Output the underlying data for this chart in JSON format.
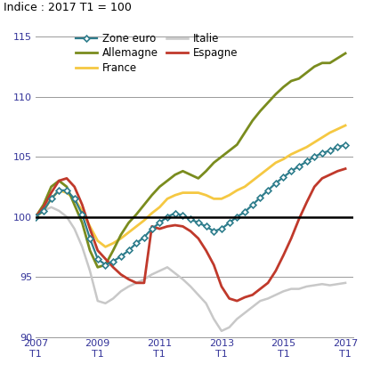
{
  "title": "Indice : 2017 T1 = 100",
  "xlim": [
    2007.0,
    2017.25
  ],
  "ylim": [
    90,
    116
  ],
  "yticks": [
    90,
    95,
    100,
    105,
    110,
    115
  ],
  "xticks": [
    2007,
    2009,
    2011,
    2013,
    2015,
    2017
  ],
  "xlabel_labels": [
    "2007\nT1",
    "2009\nT1",
    "2011\nT1",
    "2013\nT1",
    "2015\nT1",
    "2017\nT1"
  ],
  "series": {
    "Zone euro": {
      "color": "#2e7d8c",
      "linewidth": 1.6,
      "marker": "D",
      "markersize": 3.5,
      "markerfacecolor": "white",
      "markeredgecolor": "#2e7d8c",
      "markeredgewidth": 1.2,
      "data": [
        100.0,
        100.5,
        101.5,
        102.2,
        102.2,
        101.5,
        100.2,
        98.2,
        96.5,
        96.0,
        96.3,
        96.7,
        97.2,
        97.8,
        98.3,
        99.0,
        99.5,
        100.0,
        100.3,
        100.1,
        99.8,
        99.5,
        99.2,
        98.8,
        99.0,
        99.5,
        100.0,
        100.4,
        101.0,
        101.6,
        102.2,
        102.8,
        103.3,
        103.8,
        104.2,
        104.6,
        105.0,
        105.3,
        105.5,
        105.8,
        106.0
      ]
    },
    "Allemagne": {
      "color": "#7a8c1e",
      "linewidth": 2.0,
      "marker": null,
      "data": [
        100.0,
        101.0,
        102.5,
        103.0,
        102.5,
        101.0,
        99.5,
        97.2,
        95.8,
        96.0,
        97.2,
        98.5,
        99.5,
        100.2,
        101.0,
        101.8,
        102.5,
        103.0,
        103.5,
        103.8,
        103.5,
        103.2,
        103.8,
        104.5,
        105.0,
        105.5,
        106.0,
        107.0,
        108.0,
        108.8,
        109.5,
        110.2,
        110.8,
        111.3,
        111.5,
        112.0,
        112.5,
        112.8,
        112.8,
        113.2,
        113.6
      ]
    },
    "France": {
      "color": "#f5c842",
      "linewidth": 2.0,
      "marker": null,
      "data": [
        100.0,
        100.5,
        101.5,
        102.2,
        102.0,
        101.5,
        100.5,
        99.2,
        98.0,
        97.5,
        97.8,
        98.2,
        98.7,
        99.2,
        99.7,
        100.3,
        100.8,
        101.5,
        101.8,
        102.0,
        102.0,
        102.0,
        101.8,
        101.5,
        101.5,
        101.8,
        102.2,
        102.5,
        103.0,
        103.5,
        104.0,
        104.5,
        104.8,
        105.2,
        105.5,
        105.8,
        106.2,
        106.6,
        107.0,
        107.3,
        107.6
      ]
    },
    "Italie": {
      "color": "#c8c8c8",
      "linewidth": 1.8,
      "marker": null,
      "data": [
        100.0,
        100.5,
        100.8,
        100.5,
        100.0,
        99.0,
        97.5,
        95.5,
        93.0,
        92.8,
        93.2,
        93.8,
        94.2,
        94.5,
        94.8,
        95.2,
        95.5,
        95.8,
        95.3,
        94.8,
        94.2,
        93.5,
        92.8,
        91.5,
        90.5,
        90.8,
        91.5,
        92.0,
        92.5,
        93.0,
        93.2,
        93.5,
        93.8,
        94.0,
        94.0,
        94.2,
        94.3,
        94.4,
        94.3,
        94.4,
        94.5
      ]
    },
    "Espagne": {
      "color": "#c0392b",
      "linewidth": 2.0,
      "marker": null,
      "data": [
        100.0,
        100.8,
        102.0,
        103.0,
        103.2,
        102.5,
        101.0,
        99.0,
        97.2,
        96.5,
        95.8,
        95.2,
        94.8,
        94.5,
        94.5,
        99.2,
        99.0,
        99.2,
        99.3,
        99.2,
        98.8,
        98.2,
        97.2,
        96.0,
        94.2,
        93.2,
        93.0,
        93.3,
        93.5,
        94.0,
        94.5,
        95.5,
        96.8,
        98.2,
        99.8,
        101.2,
        102.5,
        103.2,
        103.5,
        103.8,
        104.0
      ]
    }
  },
  "legend_rows": [
    [
      "Zone euro",
      "Allemagne"
    ],
    [
      "France",
      "Italie"
    ],
    [
      "Espagne"
    ]
  ],
  "hline_y": 100,
  "hline_color": "black",
  "hline_linewidth": 1.8,
  "background_color": "white",
  "grid_color": "#999999",
  "grid_linewidth": 0.7,
  "title_fontsize": 9,
  "tick_fontsize": 8,
  "legend_fontsize": 8.5
}
